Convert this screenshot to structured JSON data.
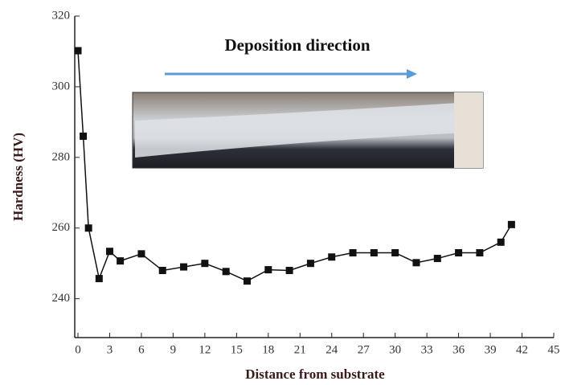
{
  "chart_data": {
    "type": "line",
    "x_label": "Distance from substrate",
    "y_label": "Hardness (HV)",
    "annotations": [
      "Deposition direction"
    ],
    "x": [
      0,
      0.5,
      1,
      2,
      3,
      4,
      6,
      8,
      10,
      12,
      14,
      16,
      18,
      20,
      22,
      24,
      26,
      28,
      30,
      32,
      34,
      36,
      38,
      40,
      41
    ],
    "values": [
      310.2,
      286,
      260,
      245.7,
      253.4,
      250.7,
      252.7,
      248,
      249,
      250,
      247.7,
      245,
      248.2,
      248,
      250,
      251.8,
      253,
      253,
      253,
      250.2,
      251.4,
      253,
      253,
      256,
      261
    ],
    "color": "#111111",
    "xlim": [
      0,
      45
    ],
    "xticks": [
      0,
      3,
      6,
      9,
      12,
      15,
      18,
      21,
      24,
      27,
      30,
      33,
      36,
      39,
      42,
      45
    ],
    "ylim": [
      229,
      320
    ],
    "yticks": [
      240,
      260,
      280,
      300,
      320
    ]
  }
}
